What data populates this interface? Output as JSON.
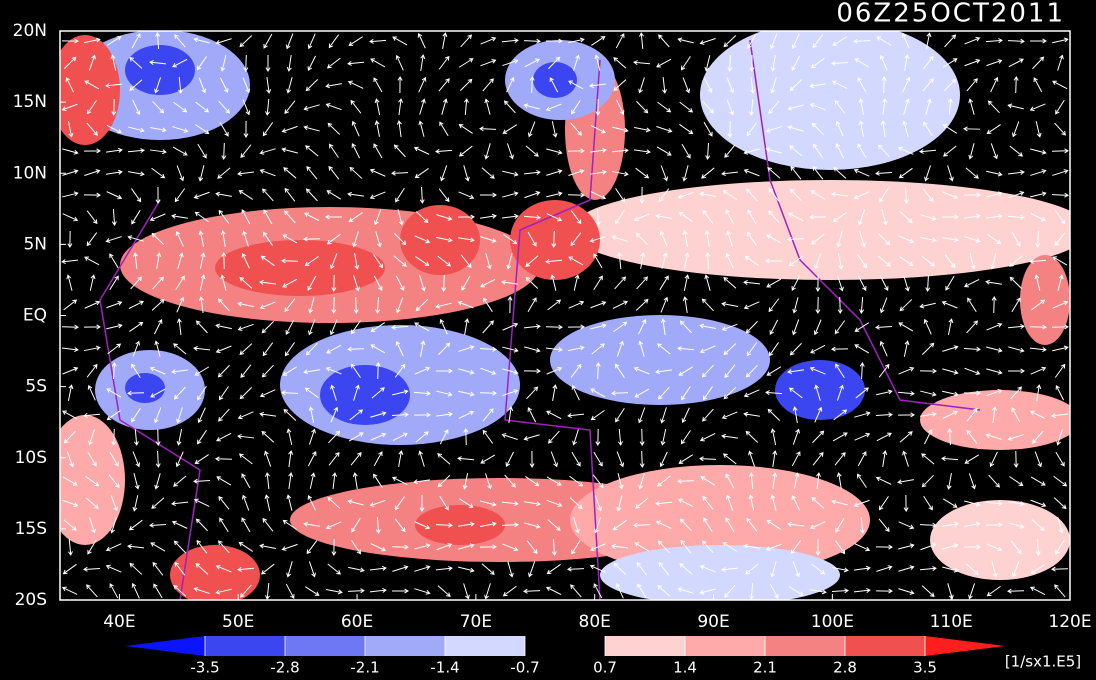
{
  "chart_data": {
    "type": "map",
    "title": "06Z25OCT2011",
    "xlim": [
      35,
      120
    ],
    "ylim": [
      -20,
      20
    ],
    "xticks": [
      {
        "value": 40,
        "label": "40E"
      },
      {
        "value": 50,
        "label": "50E"
      },
      {
        "value": 60,
        "label": "60E"
      },
      {
        "value": 70,
        "label": "70E"
      },
      {
        "value": 80,
        "label": "80E"
      },
      {
        "value": 90,
        "label": "90E"
      },
      {
        "value": 100,
        "label": "100E"
      },
      {
        "value": 110,
        "label": "110E"
      },
      {
        "value": 120,
        "label": "120E"
      }
    ],
    "yticks": [
      {
        "value": 20,
        "label": "20N"
      },
      {
        "value": 15,
        "label": "15N"
      },
      {
        "value": 10,
        "label": "10N"
      },
      {
        "value": 5,
        "label": "5N"
      },
      {
        "value": 0,
        "label": "EQ"
      },
      {
        "value": -5,
        "label": "5S"
      },
      {
        "value": -10,
        "label": "10S"
      },
      {
        "value": -15,
        "label": "15S"
      },
      {
        "value": -20,
        "label": "20S"
      }
    ],
    "colorbar": {
      "levels": [
        -3.5,
        -2.8,
        -2.1,
        -1.4,
        -0.7,
        0.7,
        1.4,
        2.1,
        2.8,
        3.5
      ],
      "colors": [
        "#0a14ff",
        "#3c46f0",
        "#6e78f5",
        "#a0aaf8",
        "#d2d8ff",
        "#000000",
        "#ffd2d2",
        "#ffaaaa",
        "#f58282",
        "#f05050",
        "#ff1e1e"
      ],
      "unit": "[1/sx1.E5]"
    }
  }
}
